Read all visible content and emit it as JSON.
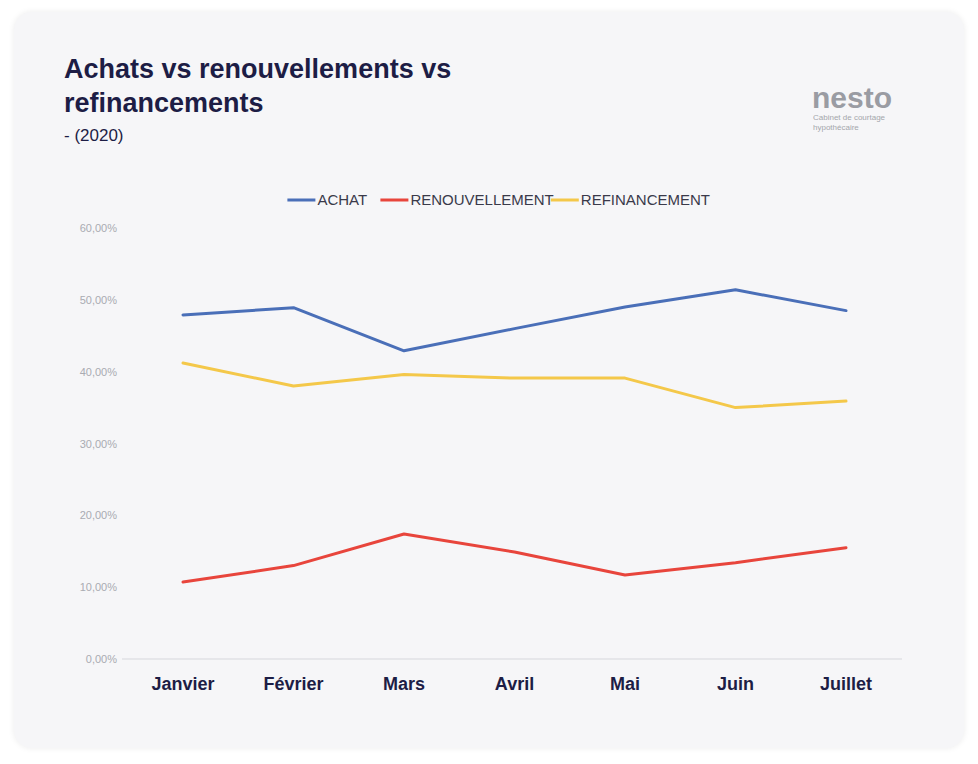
{
  "chart_data": {
    "type": "line",
    "title": "Achats vs renouvellements vs refinancements",
    "subtitle": "- (2020)",
    "annotations": [
      "nesto",
      "Cabinet de courtage hypothécaire"
    ],
    "categories": [
      "Janvier",
      "Février",
      "Mars",
      "Avril",
      "Mai",
      "Juin",
      "Juillet"
    ],
    "series": [
      {
        "name": "ACHAT",
        "color": "#4a6fb8",
        "values": [
          47.9,
          48.9,
          42.9,
          46.0,
          49.0,
          51.4,
          48.5
        ]
      },
      {
        "name": "RENOUVELLEMENT",
        "color": "#e8453c",
        "values": [
          10.7,
          13.0,
          17.4,
          14.9,
          11.7,
          13.4,
          15.5
        ]
      },
      {
        "name": "REFINANCEMENT",
        "color": "#f4c84a",
        "values": [
          41.2,
          38.0,
          39.6,
          39.1,
          39.1,
          35.0,
          35.9
        ]
      }
    ],
    "ylim": [
      0,
      60
    ],
    "yticks": [
      {
        "value": 0,
        "label": "0,00%"
      },
      {
        "value": 10,
        "label": "10,00%"
      },
      {
        "value": 20,
        "label": "20,00%"
      },
      {
        "value": 30,
        "label": "30,00%"
      },
      {
        "value": 40,
        "label": "40,00%"
      },
      {
        "value": 50,
        "label": "50,00%"
      },
      {
        "value": 60,
        "label": "60,00%"
      }
    ],
    "grid": false,
    "legend": "top"
  }
}
